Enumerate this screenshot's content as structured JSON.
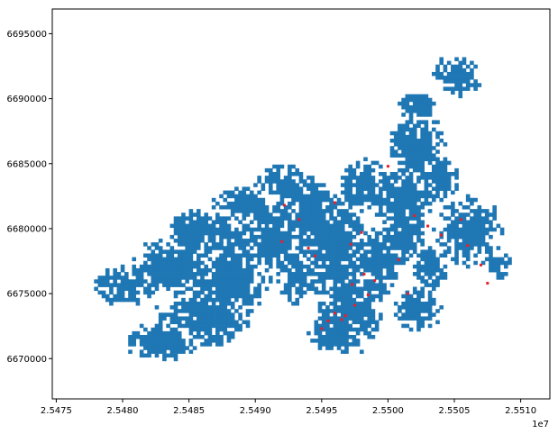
{
  "chart_data": {
    "type": "scatter",
    "title": "",
    "xlabel": "",
    "ylabel": "",
    "x_offset_label": "1e7",
    "xlim": [
      2.54747,
      2.55122
    ],
    "ylim": [
      6666900,
      6696900
    ],
    "x_ticks": [
      2.5475,
      2.548,
      2.5485,
      2.549,
      2.5495,
      2.55,
      2.5505,
      2.551
    ],
    "x_tick_labels": [
      "2.5475",
      "2.5480",
      "2.5485",
      "2.5490",
      "2.5495",
      "2.5500",
      "2.5505",
      "2.5510"
    ],
    "y_ticks": [
      6670000,
      6675000,
      6680000,
      6685000,
      6690000,
      6695000
    ],
    "y_tick_labels": [
      "6670000",
      "6675000",
      "6680000",
      "6685000",
      "6690000",
      "6695000"
    ],
    "grid": false,
    "legend": "none",
    "series": [
      {
        "kind": "raster-cells",
        "color": "#1f77b4",
        "cell_size_x": 2.86e-05,
        "cell_size_y": 285,
        "x0": 2.54747,
        "y0": 6696900,
        "nx": 131,
        "ny": 105,
        "blobs": [
          {
            "x": 2.548,
            "y": 6675800,
            "rx": 0.0002,
            "ry": 1300
          },
          {
            "x": 2.5484,
            "y": 6677200,
            "rx": 0.0003,
            "ry": 1800
          },
          {
            "x": 2.5486,
            "y": 6673500,
            "rx": 0.0003,
            "ry": 2000
          },
          {
            "x": 2.5483,
            "y": 6671500,
            "rx": 0.00025,
            "ry": 1200
          },
          {
            "x": 2.5488,
            "y": 6676200,
            "rx": 0.00025,
            "ry": 2200
          },
          {
            "x": 2.5486,
            "y": 6680000,
            "rx": 0.00025,
            "ry": 1400
          },
          {
            "x": 2.5489,
            "y": 6682000,
            "rx": 0.0002,
            "ry": 1200
          },
          {
            "x": 2.5491,
            "y": 6679500,
            "rx": 0.0002,
            "ry": 2500
          },
          {
            "x": 2.5492,
            "y": 6683500,
            "rx": 0.0002,
            "ry": 1200
          },
          {
            "x": 2.5494,
            "y": 6681000,
            "rx": 0.00015,
            "ry": 3000
          },
          {
            "x": 2.5493,
            "y": 6676500,
            "rx": 0.00012,
            "ry": 2000
          },
          {
            "x": 2.5496,
            "y": 6678500,
            "rx": 0.0002,
            "ry": 3500
          },
          {
            "x": 2.5497,
            "y": 6674000,
            "rx": 0.0002,
            "ry": 2800
          },
          {
            "x": 2.5496,
            "y": 6672000,
            "rx": 0.00018,
            "ry": 1200
          },
          {
            "x": 2.5499,
            "y": 6677500,
            "rx": 0.00015,
            "ry": 2200
          },
          {
            "x": 2.5498,
            "y": 6683500,
            "rx": 0.00015,
            "ry": 1800
          },
          {
            "x": 2.5501,
            "y": 6682500,
            "rx": 0.0002,
            "ry": 2200
          },
          {
            "x": 2.5501,
            "y": 6679500,
            "rx": 0.00015,
            "ry": 1800
          },
          {
            "x": 2.5502,
            "y": 6686500,
            "rx": 0.00018,
            "ry": 2200
          },
          {
            "x": 2.5504,
            "y": 6684000,
            "rx": 0.00012,
            "ry": 1500
          },
          {
            "x": 2.5506,
            "y": 6680000,
            "rx": 0.00022,
            "ry": 2200
          },
          {
            "x": 2.5503,
            "y": 6677000,
            "rx": 0.00012,
            "ry": 1500
          },
          {
            "x": 2.5502,
            "y": 6674000,
            "rx": 0.00015,
            "ry": 1500
          },
          {
            "x": 2.5508,
            "y": 6677500,
            "rx": 0.0001,
            "ry": 1000
          },
          {
            "x": 2.5505,
            "y": 6691800,
            "rx": 0.00015,
            "ry": 1400
          },
          {
            "x": 2.5502,
            "y": 6689500,
            "rx": 0.00012,
            "ry": 1000
          },
          {
            "x": 2.5488,
            "y": 6678800,
            "rx": 0.00015,
            "ry": 900
          }
        ]
      },
      {
        "kind": "points",
        "color": "#e8202a",
        "x": [
          2.54922,
          2.54933,
          2.5492,
          2.5494,
          2.54972,
          2.5498,
          2.5499,
          2.54973,
          2.5496,
          2.54955,
          2.54965,
          2.5495,
          2.54968,
          2.54975,
          2.54985,
          2.54982,
          2.55008,
          2.55015,
          2.5502,
          2.5503,
          2.5504,
          2.55055,
          2.5506,
          2.5507,
          2.55075,
          2.55,
          2.5496,
          2.54945
        ],
        "y": [
          6681800,
          6680700,
          6679000,
          6678500,
          6678800,
          6679700,
          6676000,
          6675700,
          6673500,
          6672900,
          6673000,
          6672300,
          6673300,
          6674100,
          6674900,
          6676500,
          6677600,
          6675000,
          6681000,
          6680200,
          6679500,
          6680700,
          6678700,
          6677200,
          6675800,
          6684800,
          6682000,
          6677900
        ]
      }
    ]
  }
}
